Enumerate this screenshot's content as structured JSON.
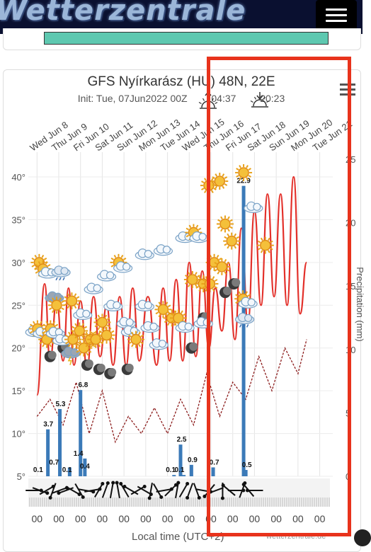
{
  "site": {
    "logo_text": "Wetterzentrale"
  },
  "chart": {
    "title": "GFS Nyírkarász (HU) 48N, 22E",
    "init_text": "Init: Tue, 07Jun2022 00Z",
    "sunrise": "04:37",
    "sunset": "20:23",
    "xlabel": "Local time (UTC+2)",
    "credit": "wetterzentrale.de",
    "y_right_label": "Precipitation (mm)"
  },
  "icons": {
    "sunrise": "sunrise-icon",
    "sunset": "sunset-icon",
    "menu": "hamburger-menu-icon",
    "weather": "weather-condition-icon",
    "moon": "night-moon-icon",
    "wind": "wind-arrow-icon"
  },
  "colors": {
    "temp": "#e3302a",
    "dew": "#8b1a1a",
    "precip": "#3b7ab8",
    "highlight": "#e8331c"
  },
  "chart_data": {
    "type": "line",
    "day_labels": [
      "Wed Jun 8",
      "Thu Jun 9",
      "Fri Jun 10",
      "Sat Jun 11",
      "Sun Jun 12",
      "Mon Jun 13",
      "Tue Jun 14",
      "Wed Jun 15",
      "Thu Jun 16",
      "Fri Jun 17",
      "Sat Jun 18",
      "Sun Jun 19",
      "Mon Jun 20",
      "Tue Jun 21"
    ],
    "hour_label": "00",
    "y_left_ticks": [
      "40°",
      "35°",
      "30°",
      "25°",
      "20°",
      "15°",
      "10°",
      "5°"
    ],
    "y_left_range": [
      5,
      42
    ],
    "y_right_ticks": [
      "25",
      "20",
      "15",
      "10",
      "5",
      "0"
    ],
    "y_right_range": [
      0,
      25
    ],
    "temperature": {
      "days": [
        8.4,
        8.75,
        9.0,
        9.3,
        9.6,
        9.85,
        10.1,
        10.4,
        10.7,
        11.0,
        11.3,
        11.6,
        11.9,
        12.2,
        12.5,
        12.8,
        13.1,
        13.5,
        13.9,
        14.2,
        14.5,
        14.8,
        15.1,
        15.4,
        15.7,
        16.0,
        16.3,
        16.6,
        16.9,
        17.2,
        17.5,
        17.8,
        18.1,
        18.4,
        18.7,
        19.0,
        19.3,
        19.6,
        19.9,
        20.2,
        20.5,
        20.8
      ],
      "values": [
        14.5,
        27.5,
        18.5,
        25.5,
        18.5,
        27,
        18,
        25.5,
        17.5,
        26,
        19,
        25,
        18,
        26,
        18,
        27,
        18.5,
        26,
        18,
        27,
        18.5,
        28,
        18.5,
        30,
        19,
        29,
        20,
        27,
        22,
        30,
        21,
        34,
        23,
        36,
        25,
        38,
        26,
        38,
        25,
        40,
        24,
        30
      ]
    },
    "dewpoint": {
      "days": [
        8.4,
        9.0,
        9.6,
        10.2,
        10.8,
        11.4,
        12.0,
        12.6,
        13.2,
        13.8,
        14.4,
        15.0,
        15.6,
        16.2,
        16.8,
        17.4,
        18.0,
        18.6,
        19.2,
        19.8,
        20.4,
        20.8
      ],
      "values": [
        12,
        14,
        11,
        16,
        10,
        15,
        9,
        12,
        10,
        13,
        10,
        14,
        11,
        17,
        12,
        16,
        14,
        19,
        15,
        20,
        17,
        21
      ]
    },
    "precipitation": {
      "days": [
        8.9,
        9.45,
        9.9,
        10.4,
        10.6,
        14.7,
        15.0,
        15.15,
        15.5,
        16.5,
        17.9,
        18.0
      ],
      "values": [
        3.7,
        5.3,
        0.7,
        6.8,
        1.4,
        0.1,
        2.5,
        0.1,
        0.9,
        0.7,
        22.9,
        0.5
      ]
    },
    "precip_labels": [
      {
        "day": 8.45,
        "text": "0.1"
      },
      {
        "day": 8.92,
        "text": "3.7"
      },
      {
        "day": 9.18,
        "text": "0.7"
      },
      {
        "day": 9.48,
        "text": "5.3"
      },
      {
        "day": 9.78,
        "text": "0.1"
      },
      {
        "day": 10.3,
        "text": "1.4"
      },
      {
        "day": 10.6,
        "text": "0.4"
      },
      {
        "day": 10.52,
        "text": "6.8"
      },
      {
        "day": 14.55,
        "text": "0.1"
      },
      {
        "day": 15.05,
        "text": "2.5"
      },
      {
        "day": 14.95,
        "text": "0.1"
      },
      {
        "day": 15.55,
        "text": "0.9"
      },
      {
        "day": 16.55,
        "text": "0.7"
      },
      {
        "day": 17.9,
        "text": "22.9"
      },
      {
        "day": 18.05,
        "text": "0.5"
      }
    ],
    "weather_icons": [
      {
        "day": 8.5,
        "t": 30,
        "k": "sun"
      },
      {
        "day": 8.8,
        "t": 29,
        "k": "partly"
      },
      {
        "day": 9.5,
        "t": 29,
        "k": "rain"
      },
      {
        "day": 9.2,
        "t": 26,
        "k": "thunder"
      },
      {
        "day": 9.3,
        "t": 25,
        "k": "sun"
      },
      {
        "day": 8.3,
        "t": 22,
        "k": "cloud"
      },
      {
        "day": 8.55,
        "t": 22,
        "k": "partly"
      },
      {
        "day": 8.85,
        "t": 21,
        "k": "sun"
      },
      {
        "day": 9.15,
        "t": 22,
        "k": "partly"
      },
      {
        "day": 9.55,
        "t": 21,
        "k": "cloud"
      },
      {
        "day": 10.0,
        "t": 25.5,
        "k": "sun"
      },
      {
        "day": 10.5,
        "t": 24,
        "k": "cloud"
      },
      {
        "day": 10.05,
        "t": 21,
        "k": "sun"
      },
      {
        "day": 9.95,
        "t": 19.5,
        "k": "thunder"
      },
      {
        "day": 10.35,
        "t": 22,
        "k": "sun"
      },
      {
        "day": 10.55,
        "t": 20,
        "k": "sun"
      },
      {
        "day": 10.85,
        "t": 21,
        "k": "sun"
      },
      {
        "day": 11.1,
        "t": 21,
        "k": "sun"
      },
      {
        "day": 11.0,
        "t": 27,
        "k": "cloud"
      },
      {
        "day": 11.6,
        "t": 28.5,
        "k": "cloud"
      },
      {
        "day": 11.4,
        "t": 23,
        "k": "sun"
      },
      {
        "day": 11.6,
        "t": 21.5,
        "k": "sun"
      },
      {
        "day": 11.9,
        "t": 25,
        "k": "cloud"
      },
      {
        "day": 12.15,
        "t": 30,
        "k": "sun"
      },
      {
        "day": 12.35,
        "t": 29.5,
        "k": "cloud"
      },
      {
        "day": 12.5,
        "t": 23,
        "k": "cloud"
      },
      {
        "day": 12.7,
        "t": 22,
        "k": "cloud"
      },
      {
        "day": 12.95,
        "t": 21,
        "k": "sun"
      },
      {
        "day": 13.35,
        "t": 31,
        "k": "cloud"
      },
      {
        "day": 13.35,
        "t": 25,
        "k": "cloud"
      },
      {
        "day": 13.6,
        "t": 22.5,
        "k": "cloud"
      },
      {
        "day": 14.0,
        "t": 20.5,
        "k": "cloud"
      },
      {
        "day": 14.2,
        "t": 31.5,
        "k": "cloud"
      },
      {
        "day": 14.2,
        "t": 24.5,
        "k": "sun"
      },
      {
        "day": 14.6,
        "t": 23.5,
        "k": "sun"
      },
      {
        "day": 14.9,
        "t": 23.5,
        "k": "sun"
      },
      {
        "day": 15.2,
        "t": 22.5,
        "k": "cloud"
      },
      {
        "day": 15.55,
        "t": 28,
        "k": "sun"
      },
      {
        "day": 15.2,
        "t": 33,
        "k": "cloud"
      },
      {
        "day": 15.6,
        "t": 33.5,
        "k": "sun"
      },
      {
        "day": 15.85,
        "t": 33,
        "k": "cloud"
      },
      {
        "day": 16.3,
        "t": 39,
        "k": "sun"
      },
      {
        "day": 16.8,
        "t": 39.5,
        "k": "sun"
      },
      {
        "day": 16.05,
        "t": 27.5,
        "k": "sun"
      },
      {
        "day": 16.35,
        "t": 27.5,
        "k": "sun"
      },
      {
        "day": 16.55,
        "t": 30,
        "k": "sun"
      },
      {
        "day": 16.9,
        "t": 29.5,
        "k": "sun"
      },
      {
        "day": 17.05,
        "t": 34.5,
        "k": "sun"
      },
      {
        "day": 17.35,
        "t": 32.5,
        "k": "sun"
      },
      {
        "day": 16.05,
        "t": 23,
        "k": "cloud"
      },
      {
        "day": 17.9,
        "t": 40.5,
        "k": "sun"
      },
      {
        "day": 18.35,
        "t": 36.5,
        "k": "cloud"
      },
      {
        "day": 18.9,
        "t": 32,
        "k": "sun"
      },
      {
        "day": 18.0,
        "t": 25.5,
        "k": "partly"
      },
      {
        "day": 17.95,
        "t": 23.5,
        "k": "rain"
      }
    ],
    "night_moons": [
      {
        "day": 9.0,
        "t": 19
      },
      {
        "day": 9.6,
        "t": 20
      },
      {
        "day": 10.7,
        "t": 18
      },
      {
        "day": 11.25,
        "t": 17.5
      },
      {
        "day": 11.75,
        "t": 17
      },
      {
        "day": 12.55,
        "t": 17.5
      },
      {
        "day": 15.5,
        "t": 20
      },
      {
        "day": 16.05,
        "t": 23.5
      },
      {
        "day": 17.05,
        "t": 26.5
      },
      {
        "day": 17.45,
        "t": 27.5
      }
    ],
    "wind_days": [
      8.3,
      8.6,
      8.9,
      9.2,
      9.5,
      9.8,
      10.1,
      10.4,
      10.7,
      11.0,
      11.3,
      11.6,
      11.9,
      12.2,
      12.5,
      12.8,
      13.1,
      13.4,
      13.7,
      14.0,
      14.3,
      14.6,
      14.9,
      15.2,
      15.5,
      15.8,
      16.1,
      16.4,
      16.7,
      17.0,
      17.3,
      17.6,
      17.9,
      18.2,
      18.5
    ],
    "wind_dirs": [
      90,
      110,
      60,
      200,
      70,
      250,
      120,
      150,
      100,
      80,
      30,
      20,
      10,
      350,
      330,
      300,
      60,
      120,
      190,
      150,
      80,
      45,
      10,
      30,
      200,
      160,
      100,
      220,
      250,
      180,
      310,
      90,
      20,
      320,
      270
    ]
  }
}
